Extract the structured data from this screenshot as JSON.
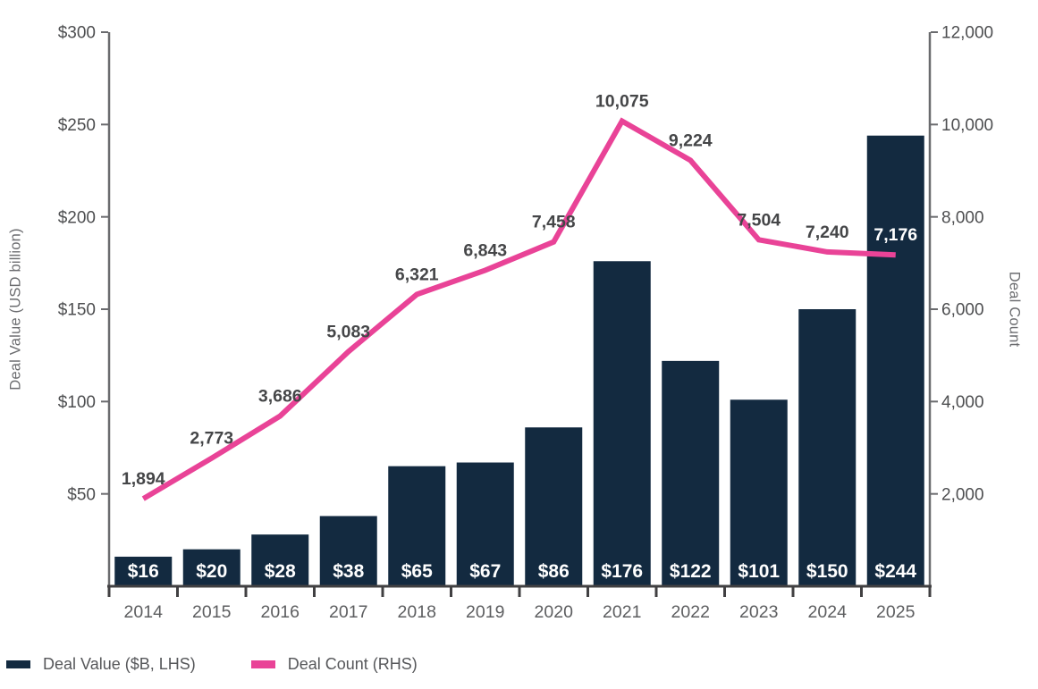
{
  "chart_data": {
    "type": "bar+line",
    "categories": [
      "2014",
      "2015",
      "2016",
      "2017",
      "2018",
      "2019",
      "2020",
      "2021",
      "2022",
      "2023",
      "2024",
      "2025"
    ],
    "series": [
      {
        "name": "Deal Value ($B, LHS)",
        "type": "bar",
        "axis": "left",
        "values": [
          16,
          20,
          28,
          38,
          65,
          67,
          86,
          176,
          122,
          101,
          150,
          244
        ],
        "labels": [
          "$16",
          "$20",
          "$28",
          "$38",
          "$65",
          "$67",
          "$86",
          "$176",
          "$122",
          "$101",
          "$150",
          "$244"
        ],
        "color": "#132a40",
        "label_color": "#ffffff"
      },
      {
        "name": "Deal Count (RHS)",
        "type": "line",
        "axis": "right",
        "values": [
          1894,
          2773,
          3686,
          5083,
          6321,
          6843,
          7458,
          10075,
          9224,
          7504,
          7240,
          7176
        ],
        "labels": [
          "1,894",
          "2,773",
          "3,686",
          "5,083",
          "6,321",
          "6,843",
          "7,458",
          "10,075",
          "9,224",
          "7,504",
          "7,240",
          "7,176"
        ],
        "color": "#e94397",
        "label_color": "#454648",
        "last_label_color": "#ffffff"
      }
    ],
    "left_axis": {
      "title": "Deal Value (USD billion)",
      "min": 0,
      "max": 300,
      "ticks": [
        {
          "value": 50,
          "label": "$50"
        },
        {
          "value": 100,
          "label": "$100"
        },
        {
          "value": 150,
          "label": "$150"
        },
        {
          "value": 200,
          "label": "$200"
        },
        {
          "value": 250,
          "label": "$250"
        },
        {
          "value": 300,
          "label": "$300"
        }
      ]
    },
    "right_axis": {
      "title": "Deal Count",
      "min": 0,
      "max": 12000,
      "ticks": [
        {
          "value": 2000,
          "label": "2,000"
        },
        {
          "value": 4000,
          "label": "4,000"
        },
        {
          "value": 6000,
          "label": "6,000"
        },
        {
          "value": 8000,
          "label": "8,000"
        },
        {
          "value": 10000,
          "label": "10,000"
        },
        {
          "value": 12000,
          "label": "12,000"
        }
      ]
    },
    "legend": [
      {
        "label": "Deal Value ($B, LHS)",
        "color": "#132a40",
        "shape": "rect"
      },
      {
        "label": "Deal Count (RHS)",
        "color": "#e94397",
        "shape": "rect"
      }
    ],
    "grid": false,
    "legend_position": "bottom-left",
    "background": "#ffffff",
    "colors": {
      "baseline": "#414042",
      "axis_line": "#6a6b6e",
      "tick_label": "#4d4e50",
      "year_label": "#5d5e60",
      "count_label": "#454648",
      "axis_title": "#6b6c6f",
      "legend_text": "#56575a"
    }
  }
}
